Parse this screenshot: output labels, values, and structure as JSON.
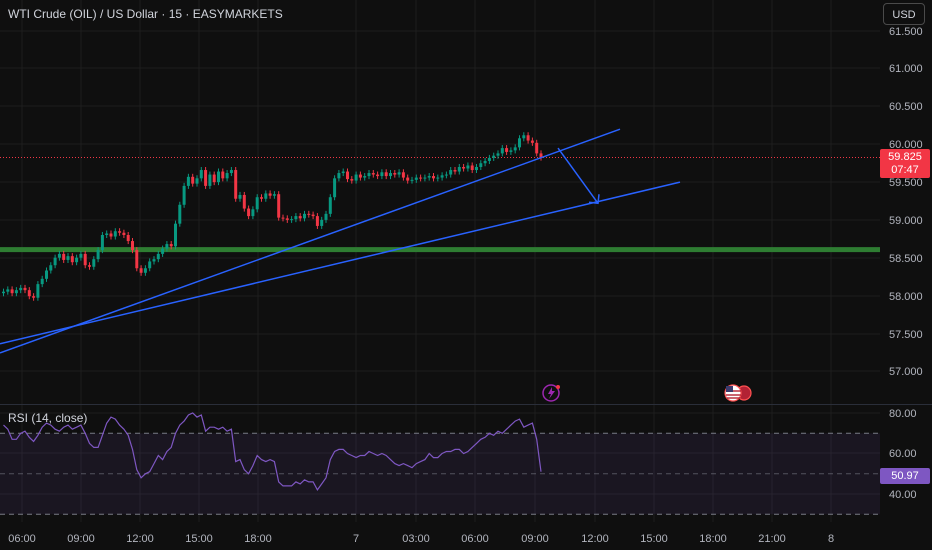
{
  "header": {
    "symbol_title": "WTI Crude (OIL) / US Dollar · 15 · EASYMARKETS",
    "currency_button": "USD"
  },
  "price_badge": {
    "price": "59.825",
    "countdown": "07:47"
  },
  "rsi": {
    "title": "RSI (14, close)",
    "value_badge": "50.97"
  },
  "colors": {
    "background": "#0f0f0f",
    "up_candle": "#089981",
    "down_candle": "#f23645",
    "trendline": "#2962ff",
    "support_zone": "#2e7d32",
    "rsi_line": "#7e57c2",
    "grid": "#1e1e1e"
  },
  "icons": [
    "lightning-event-icon",
    "us-flag-event-icon"
  ],
  "chart_data": [
    {
      "type": "candlestick",
      "yaxis_ticks": [
        "61.500",
        "61.000",
        "60.500",
        "60.000",
        "59.500",
        "59.000",
        "58.500",
        "58.000",
        "57.500",
        "57.000"
      ],
      "xaxis_ticks": [
        "06:00",
        "09:00",
        "12:00",
        "15:00",
        "18:00",
        "7",
        "03:00",
        "06:00",
        "09:00",
        "12:00",
        "15:00",
        "18:00",
        "21:00",
        "8"
      ],
      "ylim": [
        56.7,
        61.55
      ],
      "last_price": 59.825,
      "support_level": 58.6,
      "closes": [
        58.05,
        58.08,
        58.03,
        58.07,
        58.1,
        58.07,
        57.99,
        57.97,
        58.15,
        58.22,
        58.33,
        58.4,
        58.5,
        58.55,
        58.47,
        58.52,
        58.44,
        58.5,
        58.55,
        58.4,
        58.38,
        58.48,
        58.6,
        58.8,
        58.82,
        58.78,
        58.85,
        58.83,
        58.8,
        58.72,
        58.6,
        58.36,
        58.3,
        58.36,
        58.45,
        58.48,
        58.55,
        58.62,
        58.68,
        58.65,
        58.95,
        59.2,
        59.45,
        59.57,
        59.48,
        59.55,
        59.66,
        59.45,
        59.6,
        59.5,
        59.64,
        59.55,
        59.62,
        59.66,
        59.28,
        59.33,
        59.15,
        59.05,
        59.14,
        59.3,
        59.28,
        59.35,
        59.32,
        59.34,
        59.03,
        59.02,
        59.0,
        59.01,
        59.05,
        59.02,
        59.08,
        59.07,
        59.05,
        58.92,
        59.0,
        59.08,
        59.3,
        59.55,
        59.62,
        59.64,
        59.54,
        59.52,
        59.6,
        59.56,
        59.58,
        59.62,
        59.6,
        59.58,
        59.63,
        59.58,
        59.62,
        59.6,
        59.63,
        59.56,
        59.52,
        59.53,
        59.56,
        59.55,
        59.56,
        59.58,
        59.55,
        59.56,
        59.59,
        59.6,
        59.66,
        59.64,
        59.7,
        59.68,
        59.72,
        59.66,
        59.7,
        59.75,
        59.78,
        59.82,
        59.85,
        59.88,
        59.95,
        59.9,
        59.92,
        59.96,
        60.08,
        60.12,
        60.05,
        60.02,
        59.88,
        59.825
      ],
      "trendlines": [
        {
          "from": [
            "06:00 start",
            57.24
          ],
          "to": [
            "12:00 day 7",
            60.2
          ]
        },
        {
          "from": [
            "06:00 start",
            57.36
          ],
          "to": [
            "15:00 day 7",
            59.5
          ]
        }
      ],
      "arrow": {
        "from": 59.95,
        "to": 59.22
      }
    },
    {
      "type": "line",
      "title": "RSI (14, close)",
      "yaxis_ticks": [
        "80.00",
        "60.00",
        "40.00"
      ],
      "ylim": [
        33,
        84
      ],
      "bands": [
        70,
        30
      ],
      "last_value": 50.97,
      "values": [
        74,
        72,
        67,
        67,
        70,
        71,
        68,
        66,
        69,
        73,
        75,
        74,
        72,
        71,
        73,
        74,
        72,
        73,
        74,
        70,
        65,
        63,
        63,
        69,
        75,
        78,
        77,
        74,
        72,
        69,
        62,
        52,
        48,
        50,
        51,
        55,
        59,
        57,
        61,
        63,
        70,
        74,
        76,
        79,
        80,
        78,
        79,
        71,
        73,
        73,
        72,
        73,
        71,
        72,
        56,
        57,
        52,
        50,
        54,
        59,
        57,
        56,
        57,
        56,
        46,
        44,
        44,
        44,
        46,
        45,
        47,
        46,
        46,
        42,
        45,
        48,
        57,
        61,
        62,
        62,
        60,
        59,
        58,
        59,
        59,
        61,
        60,
        59,
        60,
        59,
        57,
        55,
        54,
        55,
        54,
        53,
        55,
        56,
        57,
        60,
        58,
        58,
        60,
        61,
        61,
        62,
        62,
        60,
        61,
        63,
        65,
        67,
        68,
        70,
        69,
        71,
        70,
        72,
        74,
        76,
        77,
        73,
        74,
        75,
        67,
        51
      ]
    }
  ]
}
